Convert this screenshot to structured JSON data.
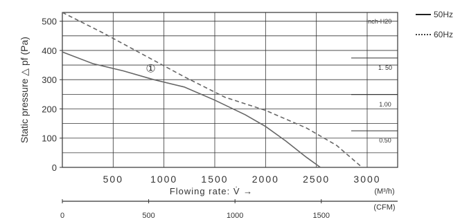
{
  "chart_data": {
    "type": "line",
    "ylabel": "Static pressure △ pf (Pa)",
    "xlabel": "Flowing rate: V̇ →",
    "x_unit": "(M³/h)",
    "x2_unit": "(CFM)",
    "xlim": [
      0,
      3300
    ],
    "ylim": [
      0,
      530
    ],
    "x_ticks": [
      500,
      1000,
      1500,
      2000,
      2500,
      3000
    ],
    "y_ticks": [
      0,
      100,
      200,
      300,
      400,
      500
    ],
    "x2_ticks": [
      0,
      500,
      1000,
      1500
    ],
    "inch_h2o_label": "Inch-H20",
    "inch_h2o_ticks": [
      {
        "label": "1. 50",
        "pa": 374
      },
      {
        "label": "1.00",
        "pa": 249
      },
      {
        "label": "0.50",
        "pa": 125
      }
    ],
    "annotation": {
      "text": "①",
      "x": 870,
      "y": 340
    },
    "series": [
      {
        "name": "50Hz",
        "style": "solid",
        "x": [
          0,
          300,
          600,
          900,
          1200,
          1500,
          1800,
          2000,
          2200,
          2400,
          2540
        ],
        "y": [
          395,
          355,
          330,
          300,
          275,
          230,
          180,
          140,
          90,
          35,
          0
        ]
      },
      {
        "name": "60Hz",
        "style": "dashed",
        "x": [
          0,
          400,
          800,
          1200,
          1600,
          2000,
          2400,
          2700,
          2950
        ],
        "y": [
          530,
          460,
          385,
          310,
          240,
          195,
          135,
          75,
          0
        ]
      }
    ],
    "colors": {
      "line": "#666666",
      "axis": "#333333",
      "grid": "#333333"
    }
  }
}
